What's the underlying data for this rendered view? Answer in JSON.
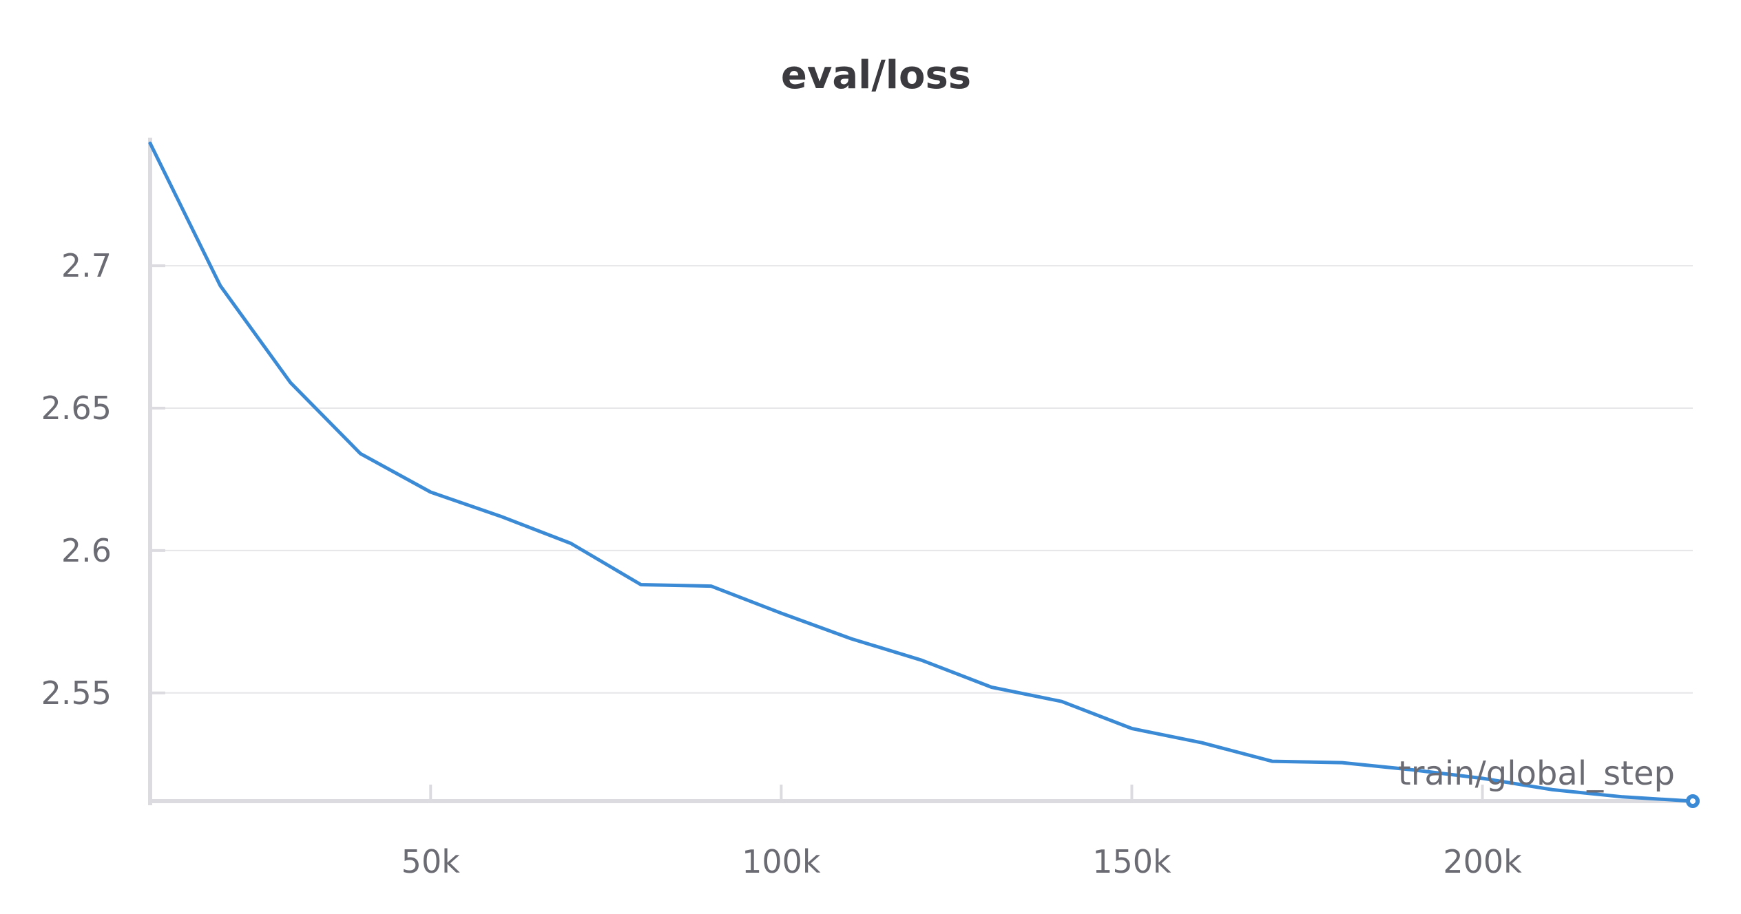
{
  "chart_data": {
    "type": "line",
    "title": "eval/loss",
    "xlabel": "train/global_step",
    "ylabel": "",
    "xlim": [
      10000,
      230000
    ],
    "ylim": [
      2.512,
      2.744
    ],
    "x_ticks": [
      50000,
      100000,
      150000,
      200000
    ],
    "x_tick_labels": [
      "50k",
      "100k",
      "150k",
      "200k"
    ],
    "y_ticks": [
      2.55,
      2.6,
      2.65,
      2.7
    ],
    "y_tick_labels": [
      "2.55",
      "2.6",
      "2.65",
      "2.7"
    ],
    "grid": true,
    "legend": "none",
    "series": [
      {
        "color": "#3a8ad6",
        "x": [
          10000,
          20000,
          30000,
          40000,
          50000,
          60000,
          70000,
          80000,
          90000,
          100000,
          110000,
          120000,
          130000,
          140000,
          150000,
          160000,
          170000,
          180000,
          190000,
          200000,
          210000,
          220000,
          230000
        ],
        "y": [
          2.743,
          2.693,
          2.659,
          2.634,
          2.6205,
          2.612,
          2.6025,
          2.588,
          2.5875,
          2.578,
          2.569,
          2.5615,
          2.552,
          2.547,
          2.5375,
          2.5325,
          2.526,
          2.5255,
          2.523,
          2.52,
          2.516,
          2.5135,
          2.512
        ]
      }
    ]
  }
}
